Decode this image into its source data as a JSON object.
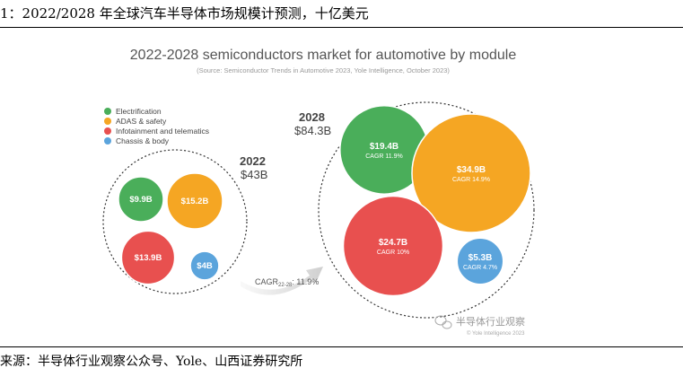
{
  "caption": "1：2022/2028 年全球汽车半导体市场规模计预测，十亿美元",
  "source_note": "来源：半导体行业观察公众号、Yole、山西证券研究所",
  "watermark": {
    "brand": "半导体行业观察",
    "copyright": "© Yole Intelligence 2023"
  },
  "chart_data": {
    "type": "bubble",
    "title": "2022-2028 semiconductors market for automotive by module",
    "subtitle": "(Source: Semiconductor Trends in Automotive 2023, Yole Intelligence, October 2023)",
    "legend": {
      "placement": "top-left",
      "items": [
        {
          "name": "Electrification",
          "color": "#4aae5a"
        },
        {
          "name": "ADAS & safety",
          "color": "#f5a623"
        },
        {
          "name": "Infotainment and telematics",
          "color": "#e8504f"
        },
        {
          "name": "Chassis & body",
          "color": "#5ba4dc"
        }
      ]
    },
    "groups": [
      {
        "year": "2022",
        "total": 43,
        "total_label": "$43B",
        "bubbles": [
          {
            "module": "Electrification",
            "value": 9.9,
            "label": "$9.9B",
            "cagr_label": ""
          },
          {
            "module": "ADAS & safety",
            "value": 15.2,
            "label": "$15.2B",
            "cagr_label": ""
          },
          {
            "module": "Infotainment and telematics",
            "value": 13.9,
            "label": "$13.9B",
            "cagr_label": ""
          },
          {
            "module": "Chassis & body",
            "value": 4,
            "label": "$4B",
            "cagr_label": ""
          }
        ]
      },
      {
        "year": "2028",
        "total": 84.3,
        "total_label": "$84.3B",
        "bubbles": [
          {
            "module": "Electrification",
            "value": 19.4,
            "label": "$19.4B",
            "cagr_label": "CAGR 11.9%"
          },
          {
            "module": "ADAS & safety",
            "value": 34.9,
            "label": "$34.9B",
            "cagr_label": "CAGR 14.9%"
          },
          {
            "module": "Infotainment and telematics",
            "value": 24.7,
            "label": "$24.7B",
            "cagr_label": "CAGR 10%"
          },
          {
            "module": "Chassis & body",
            "value": 5.3,
            "label": "$5.3B",
            "cagr_label": "CAGR 4.7%"
          }
        ]
      }
    ],
    "arrow": {
      "label_prefix": "CAGR",
      "label_subscript": "22-28",
      "label_suffix": ": 11.9%"
    }
  }
}
